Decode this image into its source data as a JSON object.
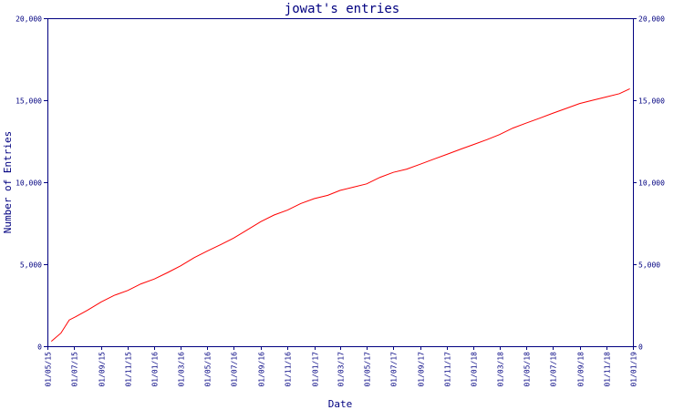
{
  "chart_data": {
    "type": "line",
    "title": "jowat's entries",
    "xlabel": "Date",
    "ylabel": "Number of Entries",
    "ylim": [
      0,
      20000
    ],
    "grid": false,
    "legend": "none",
    "y_ticks": [
      0,
      5000,
      10000,
      15000,
      20000
    ],
    "y_tick_labels": [
      "0",
      "5,000",
      "10,000",
      "15,000",
      "20,000"
    ],
    "x_tick_labels": [
      "01/05/15",
      "01/07/15",
      "01/09/15",
      "01/11/15",
      "01/01/16",
      "01/03/16",
      "01/05/16",
      "01/07/16",
      "01/09/16",
      "01/11/16",
      "01/01/17",
      "01/03/17",
      "01/05/17",
      "01/07/17",
      "01/09/17",
      "01/11/17",
      "01/01/18",
      "01/03/18",
      "01/05/18",
      "01/07/18",
      "01/09/18",
      "01/11/18",
      "01/01/19"
    ],
    "x_range": [
      "2015-05-01",
      "2019-01-01"
    ],
    "series": [
      {
        "color": "#ff0000",
        "x": [
          "2015-05-10",
          "2015-06-01",
          "2015-06-20",
          "2015-07-05",
          "2015-08-01",
          "2015-09-01",
          "2015-10-01",
          "2015-11-01",
          "2015-12-01",
          "2016-01-01",
          "2016-02-01",
          "2016-03-01",
          "2016-04-01",
          "2016-05-01",
          "2016-06-01",
          "2016-07-01",
          "2016-08-01",
          "2016-09-01",
          "2016-10-01",
          "2016-11-01",
          "2016-12-01",
          "2017-01-01",
          "2017-02-01",
          "2017-03-01",
          "2017-04-01",
          "2017-05-01",
          "2017-06-01",
          "2017-07-01",
          "2017-08-01",
          "2017-09-01",
          "2017-10-01",
          "2017-11-01",
          "2017-12-01",
          "2018-01-01",
          "2018-02-01",
          "2018-03-01",
          "2018-04-01",
          "2018-05-01",
          "2018-06-01",
          "2018-07-01",
          "2018-08-01",
          "2018-09-01",
          "2018-10-01",
          "2018-11-01",
          "2018-12-01",
          "2018-12-25"
        ],
        "values": [
          300,
          800,
          1600,
          1800,
          2200,
          2700,
          3100,
          3400,
          3800,
          4100,
          4500,
          4900,
          5400,
          5800,
          6200,
          6600,
          7100,
          7600,
          8000,
          8300,
          8700,
          9000,
          9200,
          9500,
          9700,
          9900,
          10300,
          10600,
          10800,
          11100,
          11400,
          11700,
          12000,
          12300,
          12600,
          12900,
          13300,
          13600,
          13900,
          14200,
          14500,
          14800,
          15000,
          15200,
          15400,
          15700
        ]
      }
    ]
  }
}
